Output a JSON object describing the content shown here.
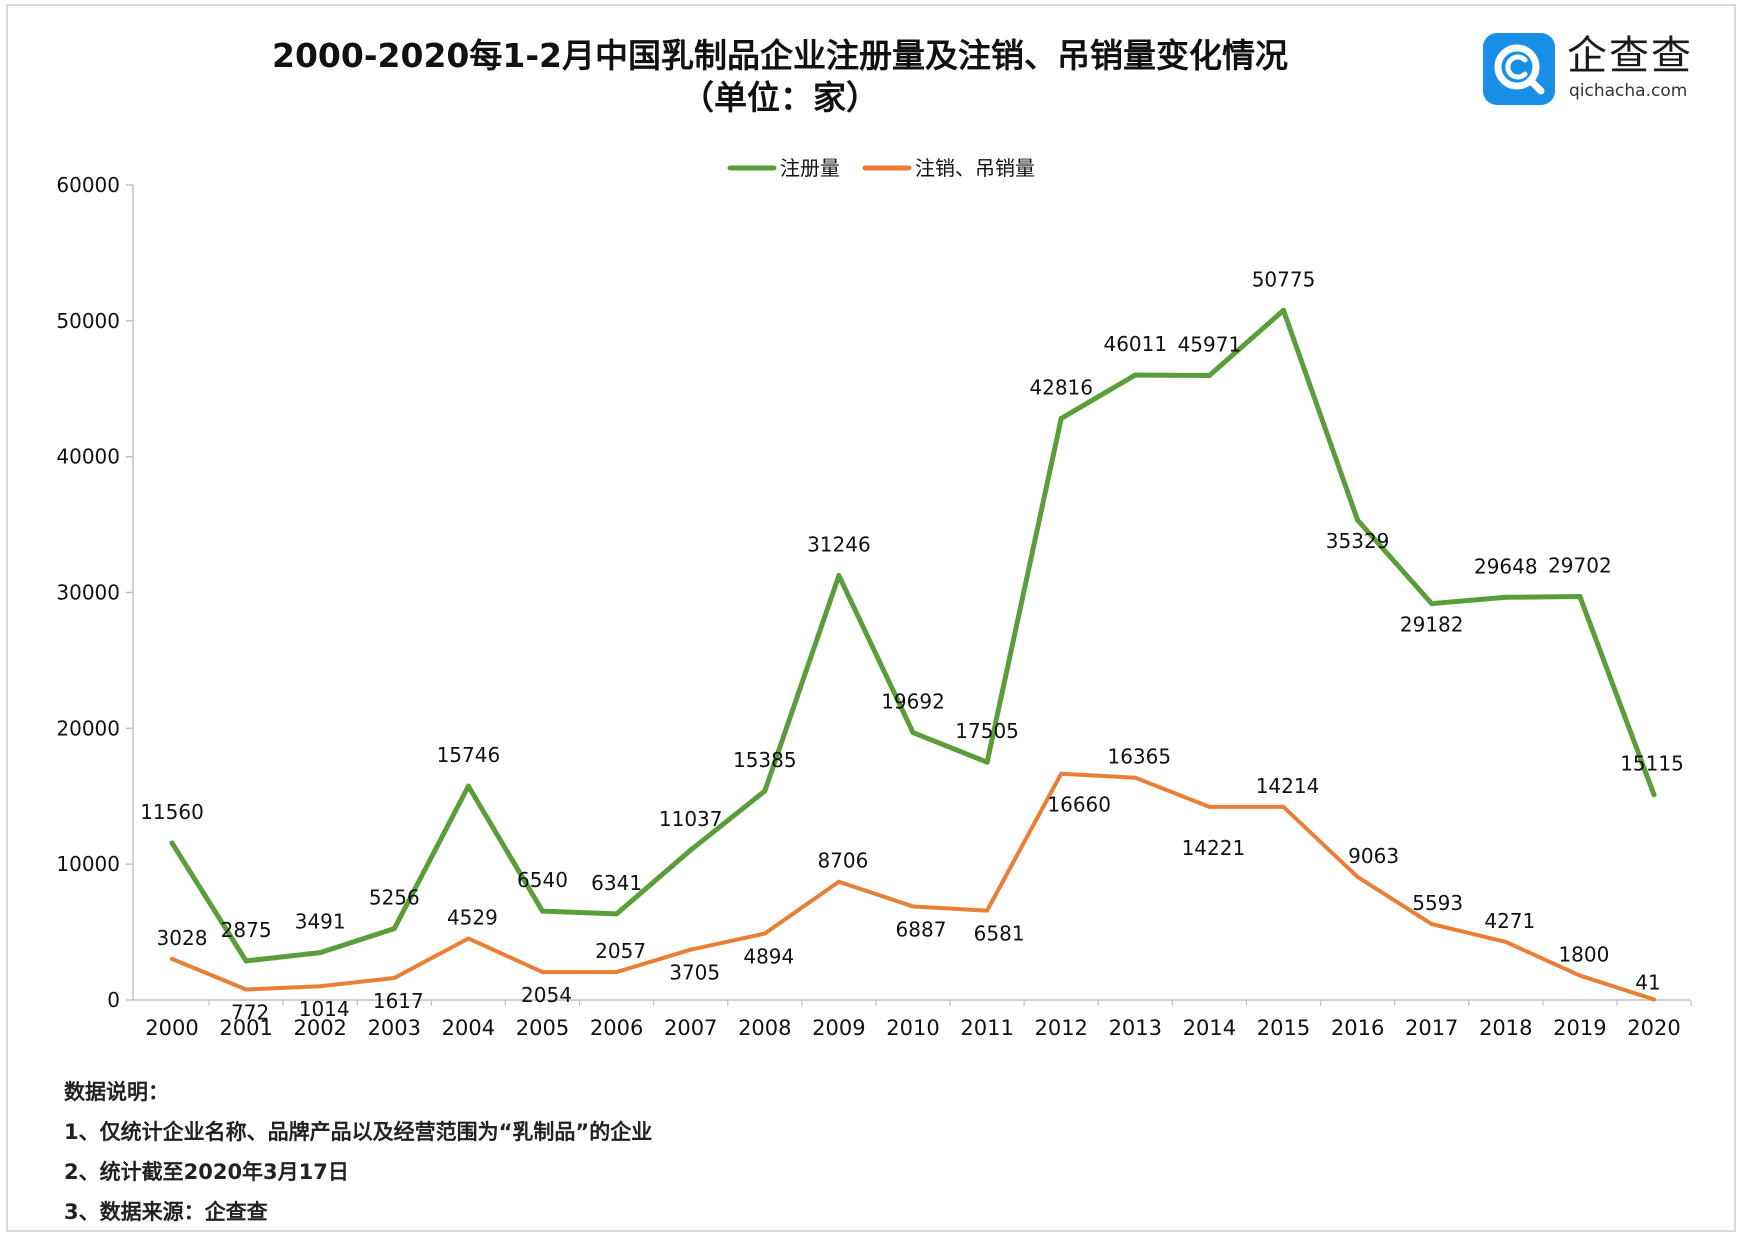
{
  "title_line1": "2000-2020每1-2月中国乳制品企业注册量及注销、吊销量变化情况",
  "title_line2": "（单位：家）",
  "logo": {
    "name": "企查查",
    "url": "qichacha.com",
    "box_color": "#1a8fe8",
    "icon": "magnifier-c-icon"
  },
  "chart_data": {
    "type": "line",
    "title": "2000-2020每1-2月中国乳制品企业注册量及注销、吊销量变化情况（单位：家）",
    "x": [
      "2000",
      "2001",
      "2002",
      "2003",
      "2004",
      "2005",
      "2006",
      "2007",
      "2008",
      "2009",
      "2010",
      "2011",
      "2012",
      "2013",
      "2014",
      "2015",
      "2016",
      "2017",
      "2018",
      "2019",
      "2020"
    ],
    "ylim": [
      0,
      60000
    ],
    "yticks": [
      0,
      10000,
      20000,
      30000,
      40000,
      50000,
      60000
    ],
    "grid": false,
    "legend_position": "top-center",
    "series": [
      {
        "name": "注册量",
        "color": "#5a9e3a",
        "values": [
          11560,
          2875,
          3491,
          5256,
          15746,
          6540,
          6341,
          11037,
          15385,
          31246,
          19692,
          17505,
          42816,
          46011,
          45971,
          50775,
          35329,
          29182,
          29648,
          29702,
          15115
        ]
      },
      {
        "name": "注销、吊销量",
        "color": "#ea7e34",
        "values": [
          3028,
          772,
          1014,
          1617,
          4529,
          2054,
          2057,
          3705,
          4894,
          8706,
          6887,
          6581,
          16660,
          16365,
          14221,
          14214,
          9063,
          5593,
          4271,
          1800,
          41
        ]
      }
    ]
  },
  "notes": {
    "heading": "数据说明：",
    "items": [
      "1、仅统计企业名称、品牌产品以及经营范围为“乳制品”的企业",
      "2、统计截至2020年3月17日",
      "3、数据来源：企查查"
    ]
  }
}
